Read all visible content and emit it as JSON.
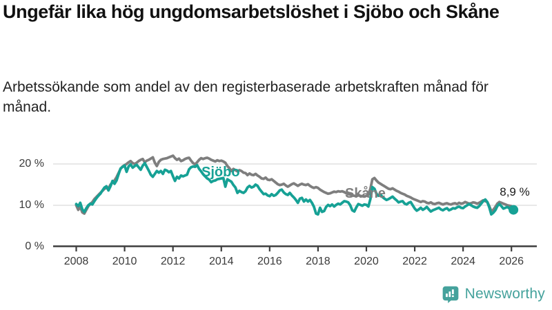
{
  "header": {
    "title": "Ungefär lika hög ungdomsarbetslöshet i Sjöbo och Skåne",
    "subtitle": "Arbetssökande som andel av den registerbaserade arbetskraften månad för månad."
  },
  "branding": {
    "logo_text": "Newsworthy",
    "logo_color": "#45a29c",
    "logo_icon": "bar-chart-speech-bubble"
  },
  "colors": {
    "background": "#ffffff",
    "gridline": "#d9d9d9",
    "axis": "#3d3d3d",
    "tick_text": "#3a3a3a",
    "sjobo": "#16a195",
    "skane": "#7e7e7e",
    "end_label_text": "#1a1a1a"
  },
  "chart_data": {
    "type": "line",
    "title": "Ungefär lika hög ungdomsarbetslöshet i Sjöbo och Skåne",
    "subtitle": "Arbetssökande som andel av den registerbaserade arbetskraften månad för månad.",
    "xlabel": "",
    "ylabel": "",
    "unit": "%",
    "grid": "horizontal",
    "legend_position": "inline-labels",
    "xlim": [
      2007.05,
      2027.05
    ],
    "ylim": [
      0,
      24
    ],
    "yticks": [
      {
        "value": 20,
        "label": "20 %"
      },
      {
        "value": 10,
        "label": "10 %"
      },
      {
        "value": 0,
        "label": "0 %"
      }
    ],
    "xticks": [
      {
        "value": 2008,
        "label": "2008"
      },
      {
        "value": 2010,
        "label": "2010"
      },
      {
        "value": 2012,
        "label": "2012"
      },
      {
        "value": 2014,
        "label": "2014"
      },
      {
        "value": 2016,
        "label": "2016"
      },
      {
        "value": 2018,
        "label": "2018"
      },
      {
        "value": 2020,
        "label": "2020"
      },
      {
        "value": 2022,
        "label": "2022"
      },
      {
        "value": 2024,
        "label": "2024"
      },
      {
        "value": 2026,
        "label": "2026"
      }
    ],
    "x_start_year": 2008,
    "x_step_months": 1,
    "end_annotation": {
      "series": "Sjöbo",
      "label": "8,9 %",
      "value": 8.9,
      "x": 2026.083
    },
    "series": [
      {
        "name": "Skåne",
        "color": "#7e7e7e",
        "end_dot": false,
        "values": [
          10,
          8.9,
          9.6,
          8.3,
          8,
          8.9,
          9.8,
          10.3,
          10.8,
          11.5,
          12,
          12.5,
          13,
          13.5,
          14,
          14.2,
          14.1,
          15,
          15.5,
          16,
          16.8,
          17.8,
          18.8,
          19.4,
          19.7,
          20,
          20.4,
          20.7,
          20.2,
          20,
          20.3,
          20.7,
          21,
          21.2,
          20.4,
          20.8,
          21,
          21.3,
          21.6,
          20.3,
          19.5,
          20.5,
          21,
          21.2,
          21.3,
          21.4,
          21.6,
          21.8,
          22,
          21.4,
          21,
          21.3,
          20.7,
          20.9,
          21.2,
          21.4,
          21.5,
          20.8,
          20.2,
          19.9,
          20.4,
          21,
          21.4,
          21.2,
          21.4,
          21.5,
          21.3,
          21,
          20.8,
          20.6,
          20.9,
          20.7,
          20.8,
          20.6,
          20.3,
          19.5,
          19,
          18.3,
          18.8,
          18.5,
          18.2,
          18.5,
          18.3,
          17.9,
          17.8,
          17.3,
          17.7,
          17.4,
          17.3,
          17.6,
          17.2,
          16.9,
          16.5,
          16.4,
          16.7,
          16.2,
          16.1,
          16.3,
          15.9,
          15.5,
          15.1,
          14.9,
          15,
          15.2,
          14.8,
          14.5,
          14.8,
          15.1,
          15.3,
          15,
          14.7,
          15,
          15.2,
          15,
          14.9,
          15.1,
          14.7,
          14.4,
          14.2,
          14.4,
          14.2,
          13.8,
          13.5,
          13.2,
          13,
          12.8,
          12.9,
          13.1,
          13.3,
          13.2,
          13.4,
          13.3,
          13.4,
          13.2,
          12.9,
          12.7,
          12.6,
          12.4,
          12.3,
          12.2,
          12.4,
          12.3,
          12.2,
          12.1,
          12.3,
          12.5,
          14,
          16.3,
          16.6,
          16,
          15.5,
          15.2,
          14.9,
          14.6,
          14.3,
          14,
          13.9,
          14.1,
          13.8,
          13.5,
          13.3,
          13,
          12.8,
          12.6,
          12.3,
          12.1,
          11.9,
          11.6,
          11.4,
          11.2,
          11,
          10.8,
          11,
          10.9,
          10.6,
          10.5,
          10.7,
          10.4,
          10.3,
          10.5,
          10.6,
          10.4,
          10.2,
          10.4,
          10.5,
          10.3,
          10.2,
          10.4,
          10.5,
          10.3,
          10.6,
          10.4,
          10.5,
          10.8,
          10.6,
          10.4,
          10.5,
          10.7,
          10.6,
          10.4,
          10.6,
          10.9,
          11.2,
          11,
          10.8,
          9.8,
          8.6,
          8.9,
          9.6,
          10.4,
          10.8,
          10.6,
          10.4,
          10.2,
          10,
          9.9,
          9.8
        ]
      },
      {
        "name": "Sjöbo",
        "color": "#16a195",
        "end_dot": true,
        "values": [
          10.3,
          9.8,
          10.6,
          9,
          8.4,
          9.3,
          10,
          10.4,
          10.2,
          11,
          11.7,
          12.3,
          12.8,
          13.6,
          14.3,
          14.6,
          13.6,
          14.6,
          15.9,
          15.2,
          16,
          17.5,
          18.9,
          19.3,
          19.6,
          18.1,
          19.4,
          19.9,
          19.1,
          19.5,
          19.8,
          19.2,
          18.6,
          19.6,
          20.2,
          19.3,
          18.4,
          17.4,
          16.9,
          17.6,
          18.3,
          17.9,
          18.3,
          17.6,
          18.6,
          18.4,
          18,
          18.3,
          17,
          15.9,
          16.9,
          16.5,
          17.2,
          17,
          17.2,
          17.4,
          18.7,
          19.2,
          19.4,
          19.3,
          19.7,
          18.8,
          18.2,
          17.5,
          17,
          16.5,
          16.2,
          15.6,
          15.9,
          16,
          16.3,
          16.4,
          16.5,
          16.6,
          14.5,
          16.3,
          16,
          15.7,
          14.9,
          14.3,
          13,
          13.5,
          13.2,
          13,
          13.4,
          14.3,
          14.7,
          14.3,
          14.5,
          15,
          14.7,
          13.9,
          13.3,
          12.7,
          12.8,
          12.4,
          12.2,
          12.7,
          12.3,
          12.5,
          13,
          13.6,
          13.8,
          13.1,
          12.7,
          12.5,
          13,
          12.4,
          11.9,
          11.3,
          10.6,
          11.6,
          11.8,
          10.9,
          11.4,
          10.9,
          11.3,
          10.6,
          9.6,
          8,
          7.8,
          9.4,
          8.4,
          8.6,
          9.6,
          10.1,
          9.8,
          10.2,
          9.7,
          10.1,
          10.4,
          10.2,
          10.6,
          11,
          10.9,
          10.7,
          10,
          8.8,
          8.5,
          9.5,
          10.3,
          10.1,
          9.9,
          10.2,
          10.1,
          9.7,
          11.5,
          14.4,
          14,
          12.8,
          12.3,
          12.6,
          12,
          11.6,
          11.3,
          11.5,
          11.8,
          12.1,
          11.6,
          11.2,
          10.7,
          10.9,
          11,
          10.4,
          10.2,
          10.6,
          10.8,
          10,
          9.2,
          8.7,
          9,
          9.4,
          8.9,
          9.2,
          9.6,
          9,
          8.5,
          8.8,
          9,
          9.2,
          9.4,
          9,
          8.8,
          9.1,
          9.3,
          8.8,
          9,
          9.3,
          9.2,
          9.5,
          9.7,
          9.4,
          9.3,
          9.7,
          10,
          10.3,
          10,
          9.7,
          9.5,
          9.4,
          9.8,
          10.4,
          11,
          11.4,
          10.8,
          9.5,
          7.8,
          8.2,
          8.8,
          9.8,
          10.3,
          9.8,
          9.2,
          9.4,
          9.6,
          9.2,
          9,
          8.9
        ]
      }
    ]
  }
}
